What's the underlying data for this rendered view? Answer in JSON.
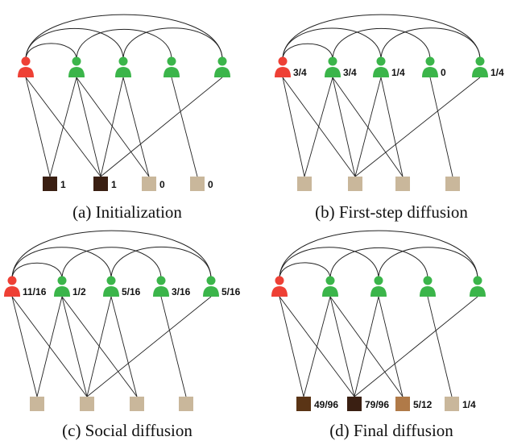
{
  "colors": {
    "red_user": "#ee4035",
    "green_user": "#3bb54a",
    "item_dark": "#3a1f12",
    "item_light": "#c9b79b",
    "item_mid_dark": "#5a3415",
    "item_brown": "#b07a48"
  },
  "panels": [
    {
      "caption": "(a) Initialization",
      "users": [
        {
          "color": "red_user",
          "label": ""
        },
        {
          "color": "green_user",
          "label": ""
        },
        {
          "color": "green_user",
          "label": ""
        },
        {
          "color": "green_user",
          "label": ""
        },
        {
          "color": "green_user",
          "label": ""
        }
      ],
      "items": [
        {
          "color": "item_dark",
          "label": "1"
        },
        {
          "color": "item_dark",
          "label": "1"
        },
        {
          "color": "item_light",
          "label": "0"
        },
        {
          "color": "item_light",
          "label": "0"
        }
      ]
    },
    {
      "caption": "(b) First-step diffusion",
      "users": [
        {
          "color": "red_user",
          "label": "3/4"
        },
        {
          "color": "green_user",
          "label": "3/4"
        },
        {
          "color": "green_user",
          "label": "1/4"
        },
        {
          "color": "green_user",
          "label": "0"
        },
        {
          "color": "green_user",
          "label": "1/4"
        }
      ],
      "items": [
        {
          "color": "item_light",
          "label": ""
        },
        {
          "color": "item_light",
          "label": ""
        },
        {
          "color": "item_light",
          "label": ""
        },
        {
          "color": "item_light",
          "label": ""
        }
      ]
    },
    {
      "caption": "(c) Social diffusion",
      "users": [
        {
          "color": "red_user",
          "label": "11/16"
        },
        {
          "color": "green_user",
          "label": "1/2"
        },
        {
          "color": "green_user",
          "label": "5/16"
        },
        {
          "color": "green_user",
          "label": "3/16"
        },
        {
          "color": "green_user",
          "label": "5/16"
        }
      ],
      "items": [
        {
          "color": "item_light",
          "label": ""
        },
        {
          "color": "item_light",
          "label": ""
        },
        {
          "color": "item_light",
          "label": ""
        },
        {
          "color": "item_light",
          "label": ""
        }
      ]
    },
    {
      "caption": "(d) Final diffusion",
      "users": [
        {
          "color": "red_user",
          "label": ""
        },
        {
          "color": "green_user",
          "label": ""
        },
        {
          "color": "green_user",
          "label": ""
        },
        {
          "color": "green_user",
          "label": ""
        },
        {
          "color": "green_user",
          "label": ""
        }
      ],
      "items": [
        {
          "color": "item_mid_dark",
          "label": "49/96"
        },
        {
          "color": "item_dark",
          "label": "79/96"
        },
        {
          "color": "item_brown",
          "label": "5/12"
        },
        {
          "color": "item_light",
          "label": "1/4"
        }
      ]
    }
  ],
  "social_links": [
    [
      0,
      1
    ],
    [
      0,
      2
    ],
    [
      0,
      4
    ],
    [
      1,
      3
    ],
    [
      2,
      4
    ]
  ],
  "bipartite_links": [
    [
      0,
      0
    ],
    [
      0,
      1
    ],
    [
      1,
      0
    ],
    [
      1,
      1
    ],
    [
      1,
      2
    ],
    [
      2,
      1
    ],
    [
      2,
      2
    ],
    [
      3,
      3
    ],
    [
      4,
      1
    ]
  ]
}
